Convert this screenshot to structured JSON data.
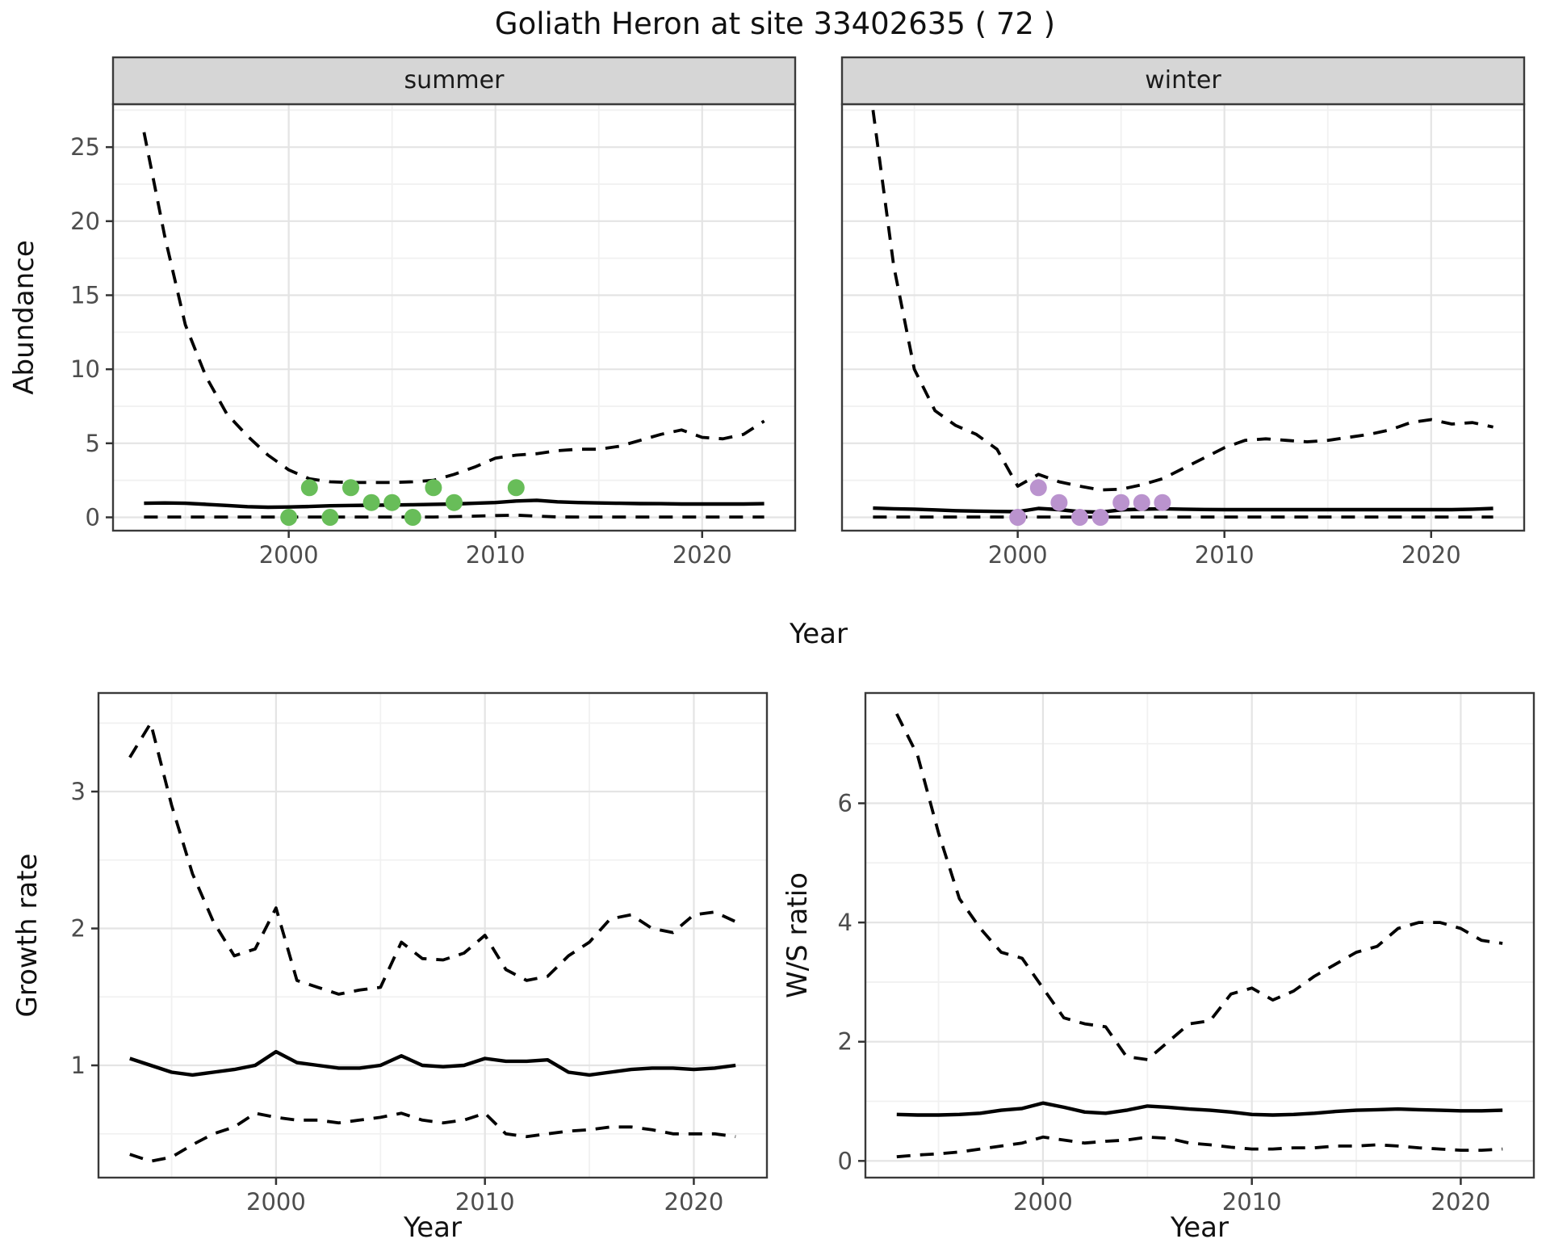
{
  "figure": {
    "title": "Goliath Heron at site 33402635 ( 72 )",
    "background": "#FFFFFF"
  },
  "labels": {
    "year": "Year",
    "abundance": "Abundance",
    "growth": "Growth rate",
    "ws": "W/S ratio"
  },
  "colors": {
    "summer_point": "#68BD59",
    "winter_point": "#BA93CE",
    "line": "#000000",
    "grid_major": "#E4E4E4",
    "grid_minor": "#F1F1F1",
    "strip_bg": "#D6D6D6",
    "panel_border": "#3A3A3A",
    "tick_mark": "#333333",
    "axis_text": "#4D4D4D",
    "title_text": "#111111"
  },
  "chart_data": [
    {
      "key": "summer",
      "type": "line",
      "facet_label": "summer",
      "xlabel": "Year",
      "ylabel": "Abundance",
      "xlim": [
        1991.5,
        2024.5
      ],
      "ylim": [
        -0.9,
        27.9
      ],
      "xticks": [
        2000,
        2010,
        2020
      ],
      "xticks_minor": [
        1995,
        2005,
        2015
      ],
      "yticks": [
        0,
        5,
        10,
        15,
        20,
        25
      ],
      "yticks_minor": [
        2.5,
        7.5,
        12.5,
        17.5,
        22.5,
        27.5
      ],
      "show_y_tick_labels": true,
      "x": [
        1993,
        1994,
        1995,
        1996,
        1997,
        1998,
        1999,
        2000,
        2001,
        2002,
        2003,
        2004,
        2005,
        2006,
        2007,
        2008,
        2009,
        2010,
        2011,
        2012,
        2013,
        2014,
        2015,
        2016,
        2017,
        2018,
        2019,
        2020,
        2021,
        2022,
        2023
      ],
      "series": [
        {
          "name": "upper-ci",
          "style": "dashed",
          "values": [
            26.0,
            19.0,
            13.0,
            9.5,
            7.0,
            5.5,
            4.2,
            3.2,
            2.6,
            2.4,
            2.35,
            2.35,
            2.35,
            2.4,
            2.5,
            2.9,
            3.4,
            4.0,
            4.2,
            4.3,
            4.5,
            4.6,
            4.6,
            4.8,
            5.2,
            5.6,
            5.9,
            5.4,
            5.3,
            5.6,
            6.5
          ]
        },
        {
          "name": "mean",
          "style": "solid",
          "values": [
            0.95,
            0.97,
            0.95,
            0.88,
            0.8,
            0.72,
            0.68,
            0.7,
            0.73,
            0.78,
            0.8,
            0.82,
            0.83,
            0.85,
            0.88,
            0.9,
            0.95,
            1.0,
            1.1,
            1.15,
            1.05,
            1.0,
            0.97,
            0.95,
            0.93,
            0.92,
            0.9,
            0.9,
            0.9,
            0.9,
            0.92
          ]
        },
        {
          "name": "lower-ci",
          "style": "dashed",
          "values": [
            0.02,
            0.02,
            0.02,
            0.02,
            0.02,
            0.02,
            0.02,
            0.02,
            0.02,
            0.02,
            0.02,
            0.02,
            0.02,
            0.02,
            0.02,
            0.05,
            0.08,
            0.12,
            0.15,
            0.08,
            0.03,
            0.02,
            0.02,
            0.02,
            0.02,
            0.02,
            0.02,
            0.02,
            0.02,
            0.02,
            0.02
          ]
        }
      ],
      "points": {
        "name": "observed-counts",
        "color_key": "summer_point",
        "x": [
          2000,
          2001,
          2002,
          2003,
          2004,
          2005,
          2006,
          2007,
          2008,
          2011
        ],
        "y": [
          0,
          2,
          0,
          2,
          1,
          1,
          0,
          2,
          1,
          2
        ]
      }
    },
    {
      "key": "winter",
      "type": "line",
      "facet_label": "winter",
      "xlabel": "Year",
      "ylabel": "Abundance",
      "xlim": [
        1991.5,
        2024.5
      ],
      "ylim": [
        -0.9,
        27.9
      ],
      "xticks": [
        2000,
        2010,
        2020
      ],
      "xticks_minor": [
        1995,
        2005,
        2015
      ],
      "yticks": [
        0,
        5,
        10,
        15,
        20,
        25
      ],
      "yticks_minor": [
        2.5,
        7.5,
        12.5,
        17.5,
        22.5,
        27.5
      ],
      "show_y_tick_labels": false,
      "x": [
        1993,
        1994,
        1995,
        1996,
        1997,
        1998,
        1999,
        2000,
        2001,
        2002,
        2003,
        2004,
        2005,
        2006,
        2007,
        2008,
        2009,
        2010,
        2011,
        2012,
        2013,
        2014,
        2015,
        2016,
        2017,
        2018,
        2019,
        2020,
        2021,
        2022,
        2023
      ],
      "series": [
        {
          "name": "upper-ci",
          "style": "dashed",
          "values": [
            27.5,
            17.0,
            10.0,
            7.2,
            6.2,
            5.6,
            4.6,
            2.1,
            2.9,
            2.4,
            2.1,
            1.85,
            1.9,
            2.2,
            2.6,
            3.3,
            4.0,
            4.7,
            5.2,
            5.3,
            5.2,
            5.1,
            5.2,
            5.4,
            5.6,
            5.9,
            6.4,
            6.6,
            6.3,
            6.4,
            6.1
          ]
        },
        {
          "name": "mean",
          "style": "solid",
          "values": [
            0.62,
            0.58,
            0.55,
            0.5,
            0.45,
            0.42,
            0.4,
            0.38,
            0.6,
            0.52,
            0.38,
            0.35,
            0.5,
            0.55,
            0.58,
            0.55,
            0.53,
            0.52,
            0.52,
            0.52,
            0.52,
            0.52,
            0.52,
            0.52,
            0.52,
            0.52,
            0.52,
            0.52,
            0.52,
            0.55,
            0.6
          ]
        },
        {
          "name": "lower-ci",
          "style": "dashed",
          "values": [
            0.02,
            0.02,
            0.02,
            0.02,
            0.02,
            0.02,
            0.02,
            0.02,
            0.02,
            0.02,
            0.02,
            0.02,
            0.02,
            0.02,
            0.02,
            0.02,
            0.02,
            0.02,
            0.02,
            0.02,
            0.02,
            0.02,
            0.02,
            0.02,
            0.02,
            0.02,
            0.02,
            0.02,
            0.02,
            0.02,
            0.02
          ]
        }
      ],
      "points": {
        "name": "observed-counts",
        "color_key": "winter_point",
        "x": [
          2000,
          2001,
          2002,
          2003,
          2004,
          2005,
          2006,
          2007
        ],
        "y": [
          0,
          2,
          1,
          0,
          0,
          1,
          1,
          1
        ]
      }
    },
    {
      "key": "growth",
      "type": "line",
      "facet_label": null,
      "xlabel": "Year",
      "ylabel": "Growth rate",
      "xlim": [
        1991.5,
        2023.5
      ],
      "ylim": [
        0.18,
        3.72
      ],
      "xticks": [
        2000,
        2010,
        2020
      ],
      "xticks_minor": [
        1995,
        2005,
        2015
      ],
      "yticks": [
        1,
        2,
        3
      ],
      "yticks_minor": [
        0.5,
        1.5,
        2.5,
        3.5
      ],
      "show_y_tick_labels": true,
      "x": [
        1993,
        1994,
        1995,
        1996,
        1997,
        1998,
        1999,
        2000,
        2001,
        2002,
        2003,
        2004,
        2005,
        2006,
        2007,
        2008,
        2009,
        2010,
        2011,
        2012,
        2013,
        2014,
        2015,
        2016,
        2017,
        2018,
        2019,
        2020,
        2021,
        2022
      ],
      "series": [
        {
          "name": "upper-ci",
          "style": "dashed",
          "values": [
            3.25,
            3.5,
            2.9,
            2.4,
            2.05,
            1.8,
            1.85,
            2.15,
            1.62,
            1.57,
            1.52,
            1.55,
            1.57,
            1.9,
            1.78,
            1.77,
            1.82,
            1.95,
            1.7,
            1.62,
            1.65,
            1.8,
            1.9,
            2.07,
            2.1,
            2.0,
            1.97,
            2.1,
            2.12,
            2.05
          ]
        },
        {
          "name": "mean",
          "style": "solid",
          "values": [
            1.05,
            1.0,
            0.95,
            0.93,
            0.95,
            0.97,
            1.0,
            1.1,
            1.02,
            1.0,
            0.98,
            0.98,
            1.0,
            1.07,
            1.0,
            0.99,
            1.0,
            1.05,
            1.03,
            1.03,
            1.04,
            0.95,
            0.93,
            0.95,
            0.97,
            0.98,
            0.98,
            0.97,
            0.98,
            1.0
          ]
        },
        {
          "name": "lower-ci",
          "style": "dashed",
          "values": [
            0.35,
            0.3,
            0.33,
            0.42,
            0.5,
            0.55,
            0.65,
            0.62,
            0.6,
            0.6,
            0.58,
            0.6,
            0.62,
            0.65,
            0.6,
            0.58,
            0.6,
            0.65,
            0.5,
            0.48,
            0.5,
            0.52,
            0.53,
            0.55,
            0.55,
            0.53,
            0.5,
            0.5,
            0.5,
            0.48
          ]
        }
      ],
      "points": null
    },
    {
      "key": "ws",
      "type": "line",
      "facet_label": null,
      "xlabel": "Year",
      "ylabel": "W/S ratio",
      "xlim": [
        1991.5,
        2023.5
      ],
      "ylim": [
        -0.28,
        7.85
      ],
      "xticks": [
        2000,
        2010,
        2020
      ],
      "xticks_minor": [
        1995,
        2005,
        2015
      ],
      "yticks": [
        0,
        2,
        4,
        6
      ],
      "yticks_minor": [
        1,
        3,
        5,
        7
      ],
      "show_y_tick_labels": true,
      "x": [
        1993,
        1994,
        1995,
        1996,
        1997,
        1998,
        1999,
        2000,
        2001,
        2002,
        2003,
        2004,
        2005,
        2006,
        2007,
        2008,
        2009,
        2010,
        2011,
        2012,
        2013,
        2014,
        2015,
        2016,
        2017,
        2018,
        2019,
        2020,
        2021,
        2022
      ],
      "series": [
        {
          "name": "upper-ci",
          "style": "dashed",
          "values": [
            7.5,
            6.8,
            5.5,
            4.4,
            3.9,
            3.5,
            3.4,
            2.9,
            2.4,
            2.3,
            2.25,
            1.75,
            1.7,
            2.0,
            2.3,
            2.35,
            2.8,
            2.9,
            2.7,
            2.85,
            3.1,
            3.3,
            3.5,
            3.6,
            3.9,
            4.0,
            4.0,
            3.9,
            3.7,
            3.65
          ]
        },
        {
          "name": "mean",
          "style": "solid",
          "values": [
            0.78,
            0.77,
            0.77,
            0.78,
            0.8,
            0.85,
            0.88,
            0.97,
            0.9,
            0.82,
            0.8,
            0.85,
            0.92,
            0.9,
            0.87,
            0.85,
            0.82,
            0.78,
            0.77,
            0.78,
            0.8,
            0.83,
            0.85,
            0.86,
            0.87,
            0.86,
            0.85,
            0.84,
            0.84,
            0.85
          ]
        },
        {
          "name": "lower-ci",
          "style": "dashed",
          "values": [
            0.07,
            0.1,
            0.12,
            0.15,
            0.2,
            0.25,
            0.3,
            0.4,
            0.35,
            0.3,
            0.33,
            0.35,
            0.4,
            0.38,
            0.3,
            0.27,
            0.23,
            0.2,
            0.2,
            0.22,
            0.22,
            0.25,
            0.25,
            0.27,
            0.25,
            0.22,
            0.2,
            0.18,
            0.18,
            0.2
          ]
        }
      ],
      "points": null
    }
  ]
}
